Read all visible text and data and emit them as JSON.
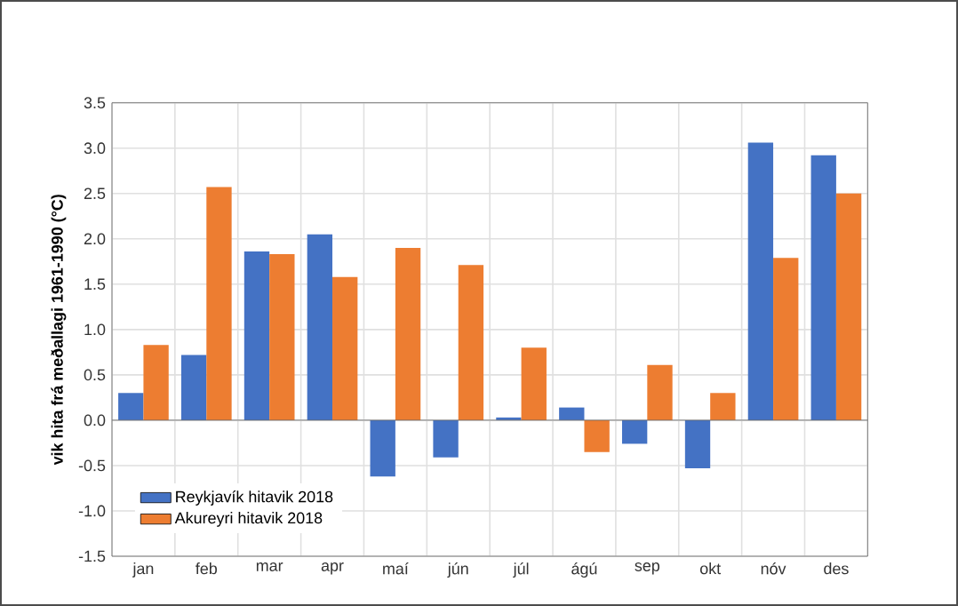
{
  "chart_data": {
    "type": "bar",
    "ylabel": "vik hita frá meðallagi 1961-1990 (°C)",
    "categories": [
      "jan",
      "feb",
      "mar",
      "apr",
      "maí",
      "jún",
      "júl",
      "ágú",
      "sep",
      "okt",
      "nóv",
      "des"
    ],
    "series": [
      {
        "name": "Reykjavík hitavik 2018",
        "color": "#4472c4",
        "values": [
          0.3,
          0.72,
          1.86,
          2.05,
          -0.62,
          -0.41,
          0.03,
          0.14,
          -0.26,
          -0.53,
          3.06,
          2.92
        ]
      },
      {
        "name": "Akureyri hitavik 2018",
        "color": "#ed7d31",
        "values": [
          0.83,
          2.57,
          1.83,
          1.58,
          1.9,
          1.71,
          0.8,
          -0.35,
          0.61,
          0.3,
          1.79,
          2.5
        ]
      }
    ],
    "ylim": [
      -1.5,
      3.5
    ],
    "yticks": [
      {
        "value": -1.5,
        "label": "-1.5"
      },
      {
        "value": -1.0,
        "label": "-1.0"
      },
      {
        "value": -0.5,
        "label": "-0.5"
      },
      {
        "value": 0,
        "label": "0.0"
      },
      {
        "value": 0.5,
        "label": "0.5"
      },
      {
        "value": 1.0,
        "label": "1.0"
      },
      {
        "value": 1.5,
        "label": "1.5"
      },
      {
        "value": 2.0,
        "label": "2.0"
      },
      {
        "value": 2.5,
        "label": "2.5"
      },
      {
        "value": 3.0,
        "label": "3.0"
      },
      {
        "value": 3.5,
        "label": "3.5"
      }
    ],
    "grid": true,
    "legend": "bottom left"
  }
}
